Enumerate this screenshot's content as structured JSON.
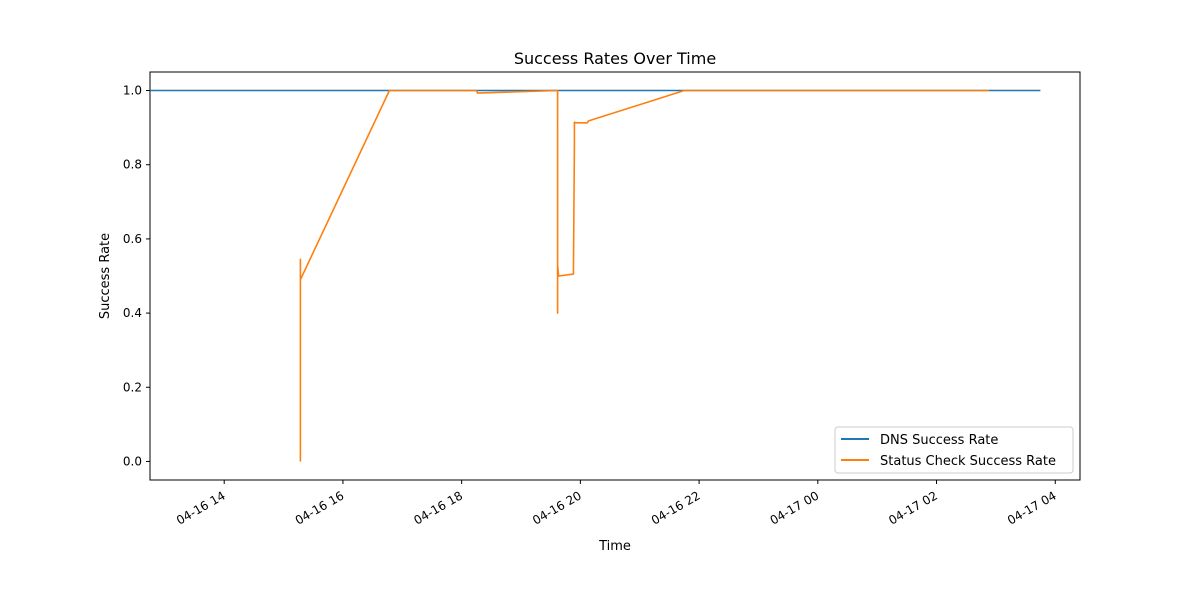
{
  "chart_data": {
    "type": "line",
    "title": "Success Rates Over Time",
    "xlabel": "Time",
    "ylabel": "Success Rate",
    "xlim": [
      "04-16 12:45",
      "04-17 04:25"
    ],
    "ylim": [
      -0.05,
      1.05
    ],
    "grid": false,
    "legend_position": "lower-right",
    "x_ticks": [
      "04-16 14",
      "04-16 16",
      "04-16 18",
      "04-16 20",
      "04-16 22",
      "04-17 00",
      "04-17 02",
      "04-17 04"
    ],
    "y_ticks": [
      "0.0",
      "0.2",
      "0.4",
      "0.6",
      "0.8",
      "1.0"
    ],
    "series": [
      {
        "name": "DNS Success Rate",
        "color": "#1f77b4",
        "x": [
          "04-16 12:45",
          "04-17 03:45"
        ],
        "y": [
          1.0,
          1.0
        ]
      },
      {
        "name": "Status Check Success Rate",
        "color": "#ff7f0e",
        "x": [
          "04-16 15:17",
          "04-16 15:17",
          "04-16 15:17",
          "04-16 15:17",
          "04-16 15:17",
          "04-16 15:17",
          "04-16 16:47",
          "04-16 18:15",
          "04-16 18:16",
          "04-16 19:37",
          "04-16 19:37",
          "04-16 19:37",
          "04-16 19:38",
          "04-16 19:38",
          "04-16 19:53",
          "04-16 19:54",
          "04-16 19:54",
          "04-16 19:55",
          "04-16 20:07",
          "04-16 20:08",
          "04-16 21:45",
          "04-17 02:53"
        ],
        "y": [
          0.0,
          0.47,
          0.545,
          0.46,
          0.49,
          0.49,
          1.0,
          1.0,
          0.993,
          1.0,
          0.4,
          0.53,
          0.5,
          0.5,
          0.505,
          0.85,
          0.915,
          0.913,
          0.913,
          0.918,
          1.0,
          1.0
        ]
      }
    ]
  }
}
